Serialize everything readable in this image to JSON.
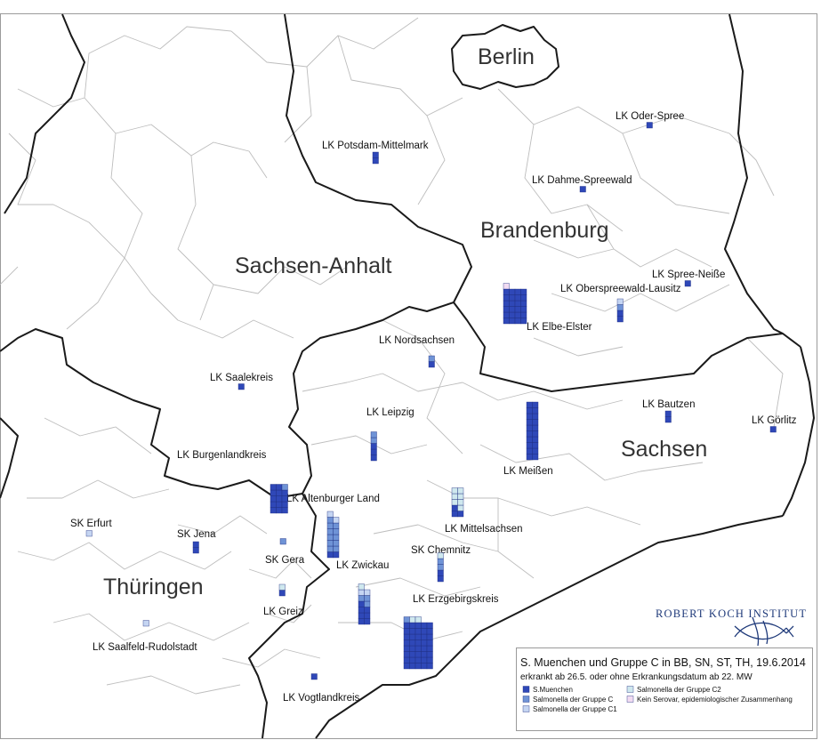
{
  "colors": {
    "s_muenchen": "#2f48b8",
    "gruppe_c": "#6f93d6",
    "gruppe_c1": "#c5d5f2",
    "gruppe_c2": "#cfe8ee",
    "kein_serovar": "#f2dcf2",
    "state_border": "#1a1a1a",
    "district_border": "#bdbdbd",
    "logo": "#1f3a7a"
  },
  "regions": [
    {
      "id": "berlin",
      "label": "Berlin"
    },
    {
      "id": "brandenburg",
      "label": "Brandenburg"
    },
    {
      "id": "sachsen-anhalt",
      "label": "Sachsen-Anhalt"
    },
    {
      "id": "sachsen",
      "label": "Sachsen"
    },
    {
      "id": "thueringen",
      "label": "Thüringen"
    }
  ],
  "districts": [
    {
      "id": "potsdam-mittelmark",
      "label": "LK Potsdam-Mittelmark",
      "cases": {
        "s_muenchen": 2
      }
    },
    {
      "id": "oder-spree",
      "label": "LK Oder-Spree",
      "cases": {
        "s_muenchen": 1
      }
    },
    {
      "id": "dahme-spreewald",
      "label": "LK Dahme-Spreewald",
      "cases": {
        "s_muenchen": 1
      }
    },
    {
      "id": "spree-neisse",
      "label": "LK Spree-Neiße",
      "cases": {
        "s_muenchen": 1
      }
    },
    {
      "id": "oberspreewald-lausitz",
      "label": "LK Oberspreewald-Lausitz",
      "cases": {
        "s_muenchen": 2,
        "gruppe_c": 1,
        "gruppe_c1": 1
      }
    },
    {
      "id": "elbe-elster",
      "label": "LK Elbe-Elster",
      "cases": {
        "s_muenchen": 24,
        "kein_serovar": 1
      }
    },
    {
      "id": "nordsachsen",
      "label": "LK Nordsachsen",
      "cases": {
        "s_muenchen": 1,
        "gruppe_c": 1
      }
    },
    {
      "id": "saalekreis",
      "label": "LK Saalekreis",
      "cases": {
        "s_muenchen": 1
      }
    },
    {
      "id": "leipzig",
      "label": "LK Leipzig",
      "cases": {
        "s_muenchen": 3,
        "gruppe_c": 2
      }
    },
    {
      "id": "bautzen",
      "label": "LK Bautzen",
      "cases": {
        "s_muenchen": 2
      }
    },
    {
      "id": "goerlitz",
      "label": "LK Görlitz",
      "cases": {
        "s_muenchen": 1
      }
    },
    {
      "id": "meissen",
      "label": "LK Meißen",
      "cases": {
        "s_muenchen": 20
      }
    },
    {
      "id": "burgenlandkreis",
      "label": "LK Burgenlandkreis",
      "cases": {
        "s_muenchen": 14,
        "gruppe_c": 1
      }
    },
    {
      "id": "altenburger-land",
      "label": "LK Altenburger Land",
      "cases": {
        "s_muenchen": 2,
        "gruppe_c": 11,
        "gruppe_c1": 2
      }
    },
    {
      "id": "mittelsachsen",
      "label": "LK Mittelsachsen",
      "cases": {
        "s_muenchen": 3,
        "gruppe_c2": 7
      }
    },
    {
      "id": "sk-erfurt",
      "label": "SK Erfurt",
      "cases": {
        "gruppe_c1": 1
      }
    },
    {
      "id": "sk-jena",
      "label": "SK Jena",
      "cases": {
        "s_muenchen": 2
      }
    },
    {
      "id": "sk-gera",
      "label": "SK Gera",
      "cases": {
        "gruppe_c": 1
      }
    },
    {
      "id": "sk-chemnitz",
      "label": "SK Chemnitz",
      "cases": {
        "s_muenchen": 2,
        "gruppe_c": 2,
        "gruppe_c2": 1
      }
    },
    {
      "id": "zwickau",
      "label": "LK Zwickau",
      "cases": {
        "s_muenchen": 7,
        "gruppe_c": 3,
        "gruppe_c1": 2,
        "gruppe_c2": 1
      }
    },
    {
      "id": "greiz",
      "label": "LK Greiz",
      "cases": {
        "s_muenchen": 1,
        "gruppe_c2": 1
      }
    },
    {
      "id": "saalfeld-rudolstadt",
      "label": "LK Saalfeld-Rudolstadt",
      "cases": {
        "gruppe_c1": 1
      }
    },
    {
      "id": "erzgebirgskreis",
      "label": "LK Erzgebirgskreis",
      "cases": {
        "s_muenchen": 40,
        "gruppe_c": 1,
        "gruppe_c2": 2
      }
    },
    {
      "id": "vogtlandkreis",
      "label": "LK Vogtlandkreis",
      "cases": {
        "s_muenchen": 1
      }
    }
  ],
  "legend": {
    "title": "S. Muenchen und Gruppe C in BB, SN, ST, TH, 19.6.2014",
    "subtitle": "erkrankt ab 26.5. oder ohne Erkrankungsdatum ab 22. MW",
    "items": [
      {
        "key": "s_muenchen",
        "label": "S.Muenchen"
      },
      {
        "key": "gruppe_c",
        "label": "Salmonella der Gruppe C"
      },
      {
        "key": "gruppe_c1",
        "label": "Salmonella der Gruppe C1"
      },
      {
        "key": "gruppe_c2",
        "label": "Salmonella der Gruppe C2"
      },
      {
        "key": "kein_serovar",
        "label": "Kein Serovar, epidemiologischer Zusammenhang"
      }
    ]
  },
  "logo": {
    "text": "ROBERT KOCH INSTITUT",
    "icon": "rki-fish-logo-icon"
  }
}
